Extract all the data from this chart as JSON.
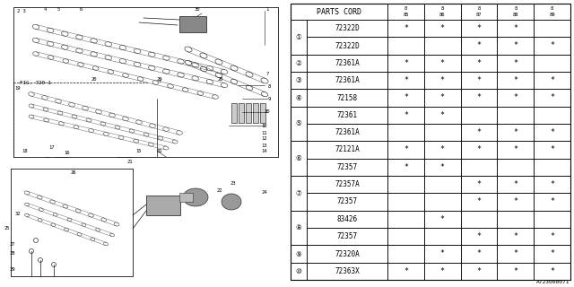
{
  "part_number_label": "A723000071",
  "table": {
    "header_col1": "PARTS CORD",
    "year_cols": [
      "85",
      "86",
      "87",
      "88",
      "89"
    ],
    "rows": [
      {
        "item": "1",
        "part": "72322D",
        "years": [
          true,
          true,
          true,
          true,
          false
        ]
      },
      {
        "item": "",
        "part": "72322D",
        "years": [
          false,
          false,
          true,
          true,
          true
        ]
      },
      {
        "item": "2",
        "part": "72361A",
        "years": [
          true,
          true,
          true,
          true,
          false
        ]
      },
      {
        "item": "3",
        "part": "72361A",
        "years": [
          true,
          true,
          true,
          true,
          true
        ]
      },
      {
        "item": "4",
        "part": "72158",
        "years": [
          true,
          true,
          true,
          true,
          true
        ]
      },
      {
        "item": "5",
        "part": "72361",
        "years": [
          true,
          true,
          false,
          false,
          false
        ]
      },
      {
        "item": "",
        "part": "72361A",
        "years": [
          false,
          false,
          true,
          true,
          true
        ]
      },
      {
        "item": "6",
        "part": "72121A",
        "years": [
          true,
          true,
          true,
          true,
          true
        ]
      },
      {
        "item": "",
        "part": "72357",
        "years": [
          true,
          true,
          false,
          false,
          false
        ]
      },
      {
        "item": "7",
        "part": "72357A",
        "years": [
          false,
          false,
          true,
          true,
          true
        ]
      },
      {
        "item": "",
        "part": "72357",
        "years": [
          false,
          false,
          true,
          true,
          true
        ]
      },
      {
        "item": "8",
        "part": "83426",
        "years": [
          false,
          true,
          false,
          false,
          false
        ]
      },
      {
        "item": "",
        "part": "72357",
        "years": [
          false,
          false,
          true,
          true,
          true
        ]
      },
      {
        "item": "9",
        "part": "72320A",
        "years": [
          false,
          true,
          true,
          true,
          true
        ]
      },
      {
        "item": "10",
        "part": "72363X",
        "years": [
          true,
          true,
          true,
          true,
          true
        ]
      }
    ]
  },
  "bg_color": "#ffffff",
  "line_color": "#000000",
  "text_color": "#000000"
}
